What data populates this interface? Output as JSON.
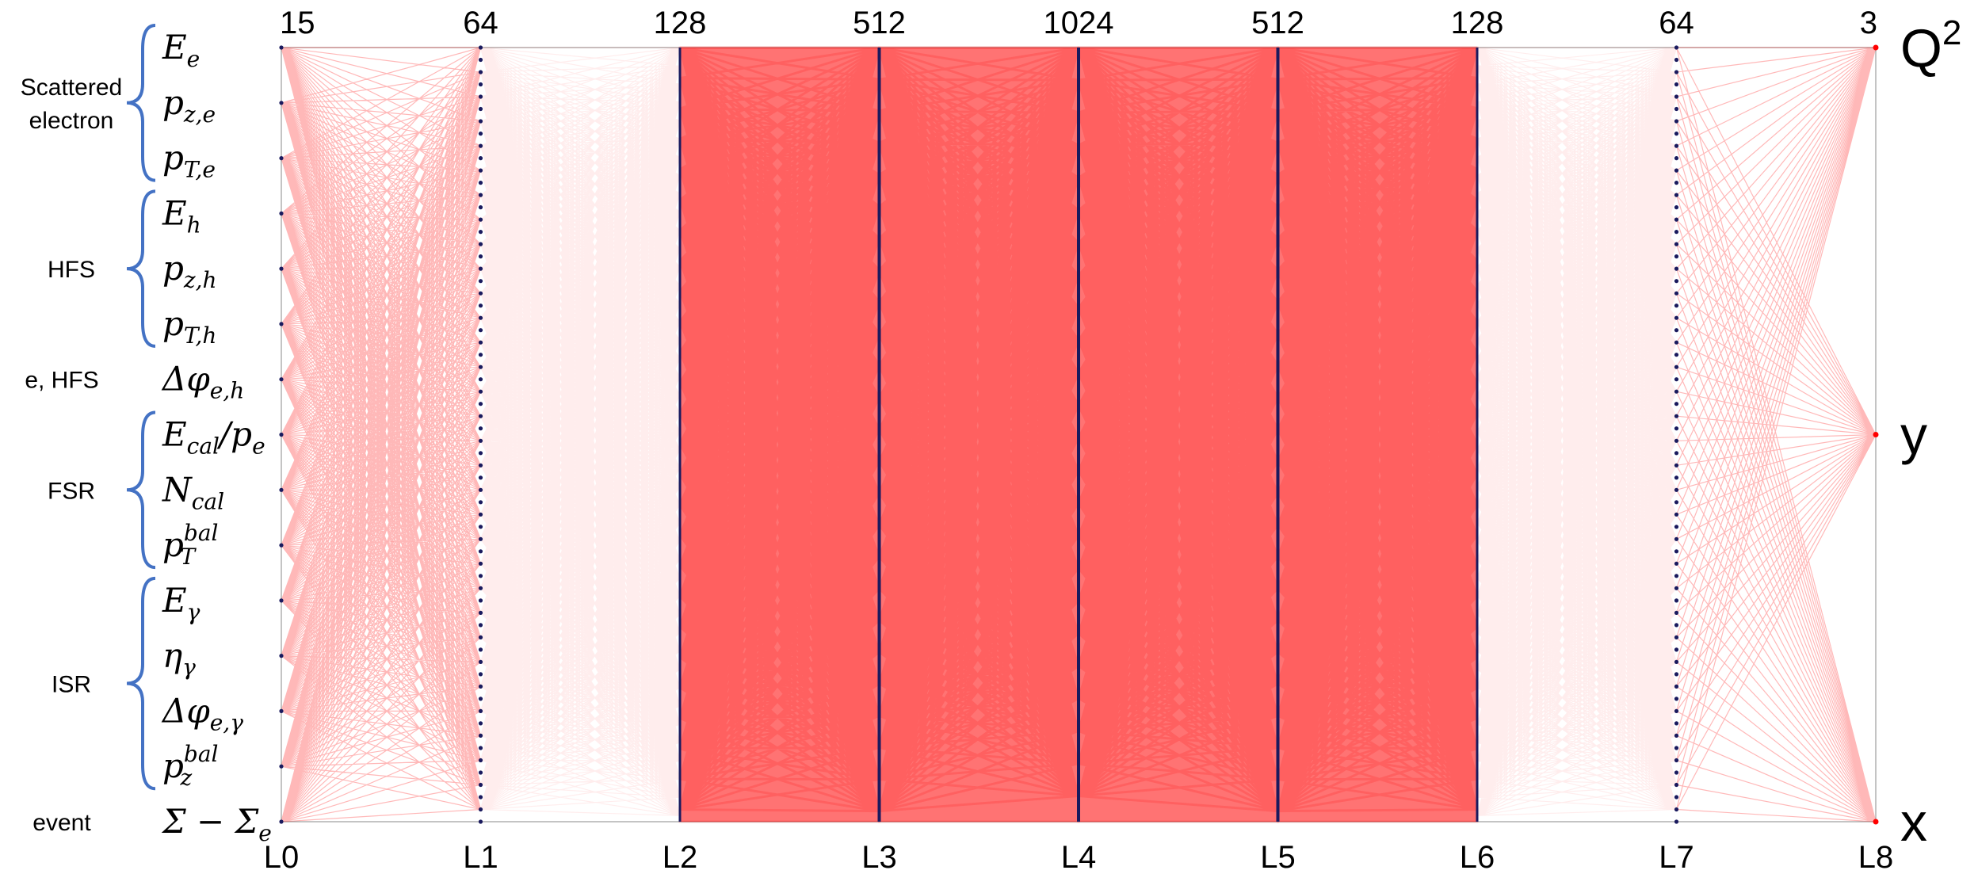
{
  "layers": [
    {
      "name": "L0",
      "size": "15"
    },
    {
      "name": "L1",
      "size": "64"
    },
    {
      "name": "L2",
      "size": "128"
    },
    {
      "name": "L3",
      "size": "512"
    },
    {
      "name": "L4",
      "size": "1024"
    },
    {
      "name": "L5",
      "size": "512"
    },
    {
      "name": "L6",
      "size": "128"
    },
    {
      "name": "L7",
      "size": "64"
    },
    {
      "name": "L8",
      "size": "3"
    }
  ],
  "inputs": [
    {
      "main": "E",
      "sub": "e",
      "sup": ""
    },
    {
      "main": "p",
      "sub": "z,e",
      "sup": ""
    },
    {
      "main": "p",
      "sub": "T,e",
      "sup": ""
    },
    {
      "main": "E",
      "sub": "h",
      "sup": ""
    },
    {
      "main": "p",
      "sub": "z,h",
      "sup": ""
    },
    {
      "main": "p",
      "sub": "T,h",
      "sup": ""
    },
    {
      "main": "Δφ",
      "sub": "e,h",
      "sup": ""
    },
    {
      "main": "E",
      "sub": "cal",
      "sup": "",
      "suffix": "/p",
      "suffix_sub": "e"
    },
    {
      "main": "N",
      "sub": "cal",
      "sup": ""
    },
    {
      "main": "p",
      "sub": "T",
      "sup": "bal"
    },
    {
      "main": "E",
      "sub": "γ",
      "sup": ""
    },
    {
      "main": "η",
      "sub": "γ",
      "sup": ""
    },
    {
      "main": "Δφ",
      "sub": "e,γ",
      "sup": ""
    },
    {
      "main": "p",
      "sub": "z",
      "sup": "bal"
    },
    {
      "main": "Σ − Σ",
      "sub": "e",
      "sup": ""
    }
  ],
  "groups": [
    {
      "label_lines": [
        "Scattered",
        "electron"
      ],
      "from": 0,
      "to": 2,
      "brace": true
    },
    {
      "label_lines": [
        "HFS"
      ],
      "from": 3,
      "to": 5,
      "brace": true
    },
    {
      "label_lines": [
        "e, HFS"
      ],
      "from": 6,
      "to": 6,
      "brace": false
    },
    {
      "label_lines": [
        "FSR"
      ],
      "from": 7,
      "to": 9,
      "brace": true
    },
    {
      "label_lines": [
        "ISR"
      ],
      "from": 10,
      "to": 13,
      "brace": true
    },
    {
      "label_lines": [
        "event"
      ],
      "from": 14,
      "to": 14,
      "brace": false
    }
  ],
  "outputs": [
    {
      "main": "Q",
      "sup": "2"
    },
    {
      "main": "y",
      "sup": ""
    },
    {
      "main": "x",
      "sup": ""
    }
  ],
  "colors": {
    "edge": "#ff0000",
    "node": "#1a1a5e",
    "brace": "#4472c4"
  }
}
